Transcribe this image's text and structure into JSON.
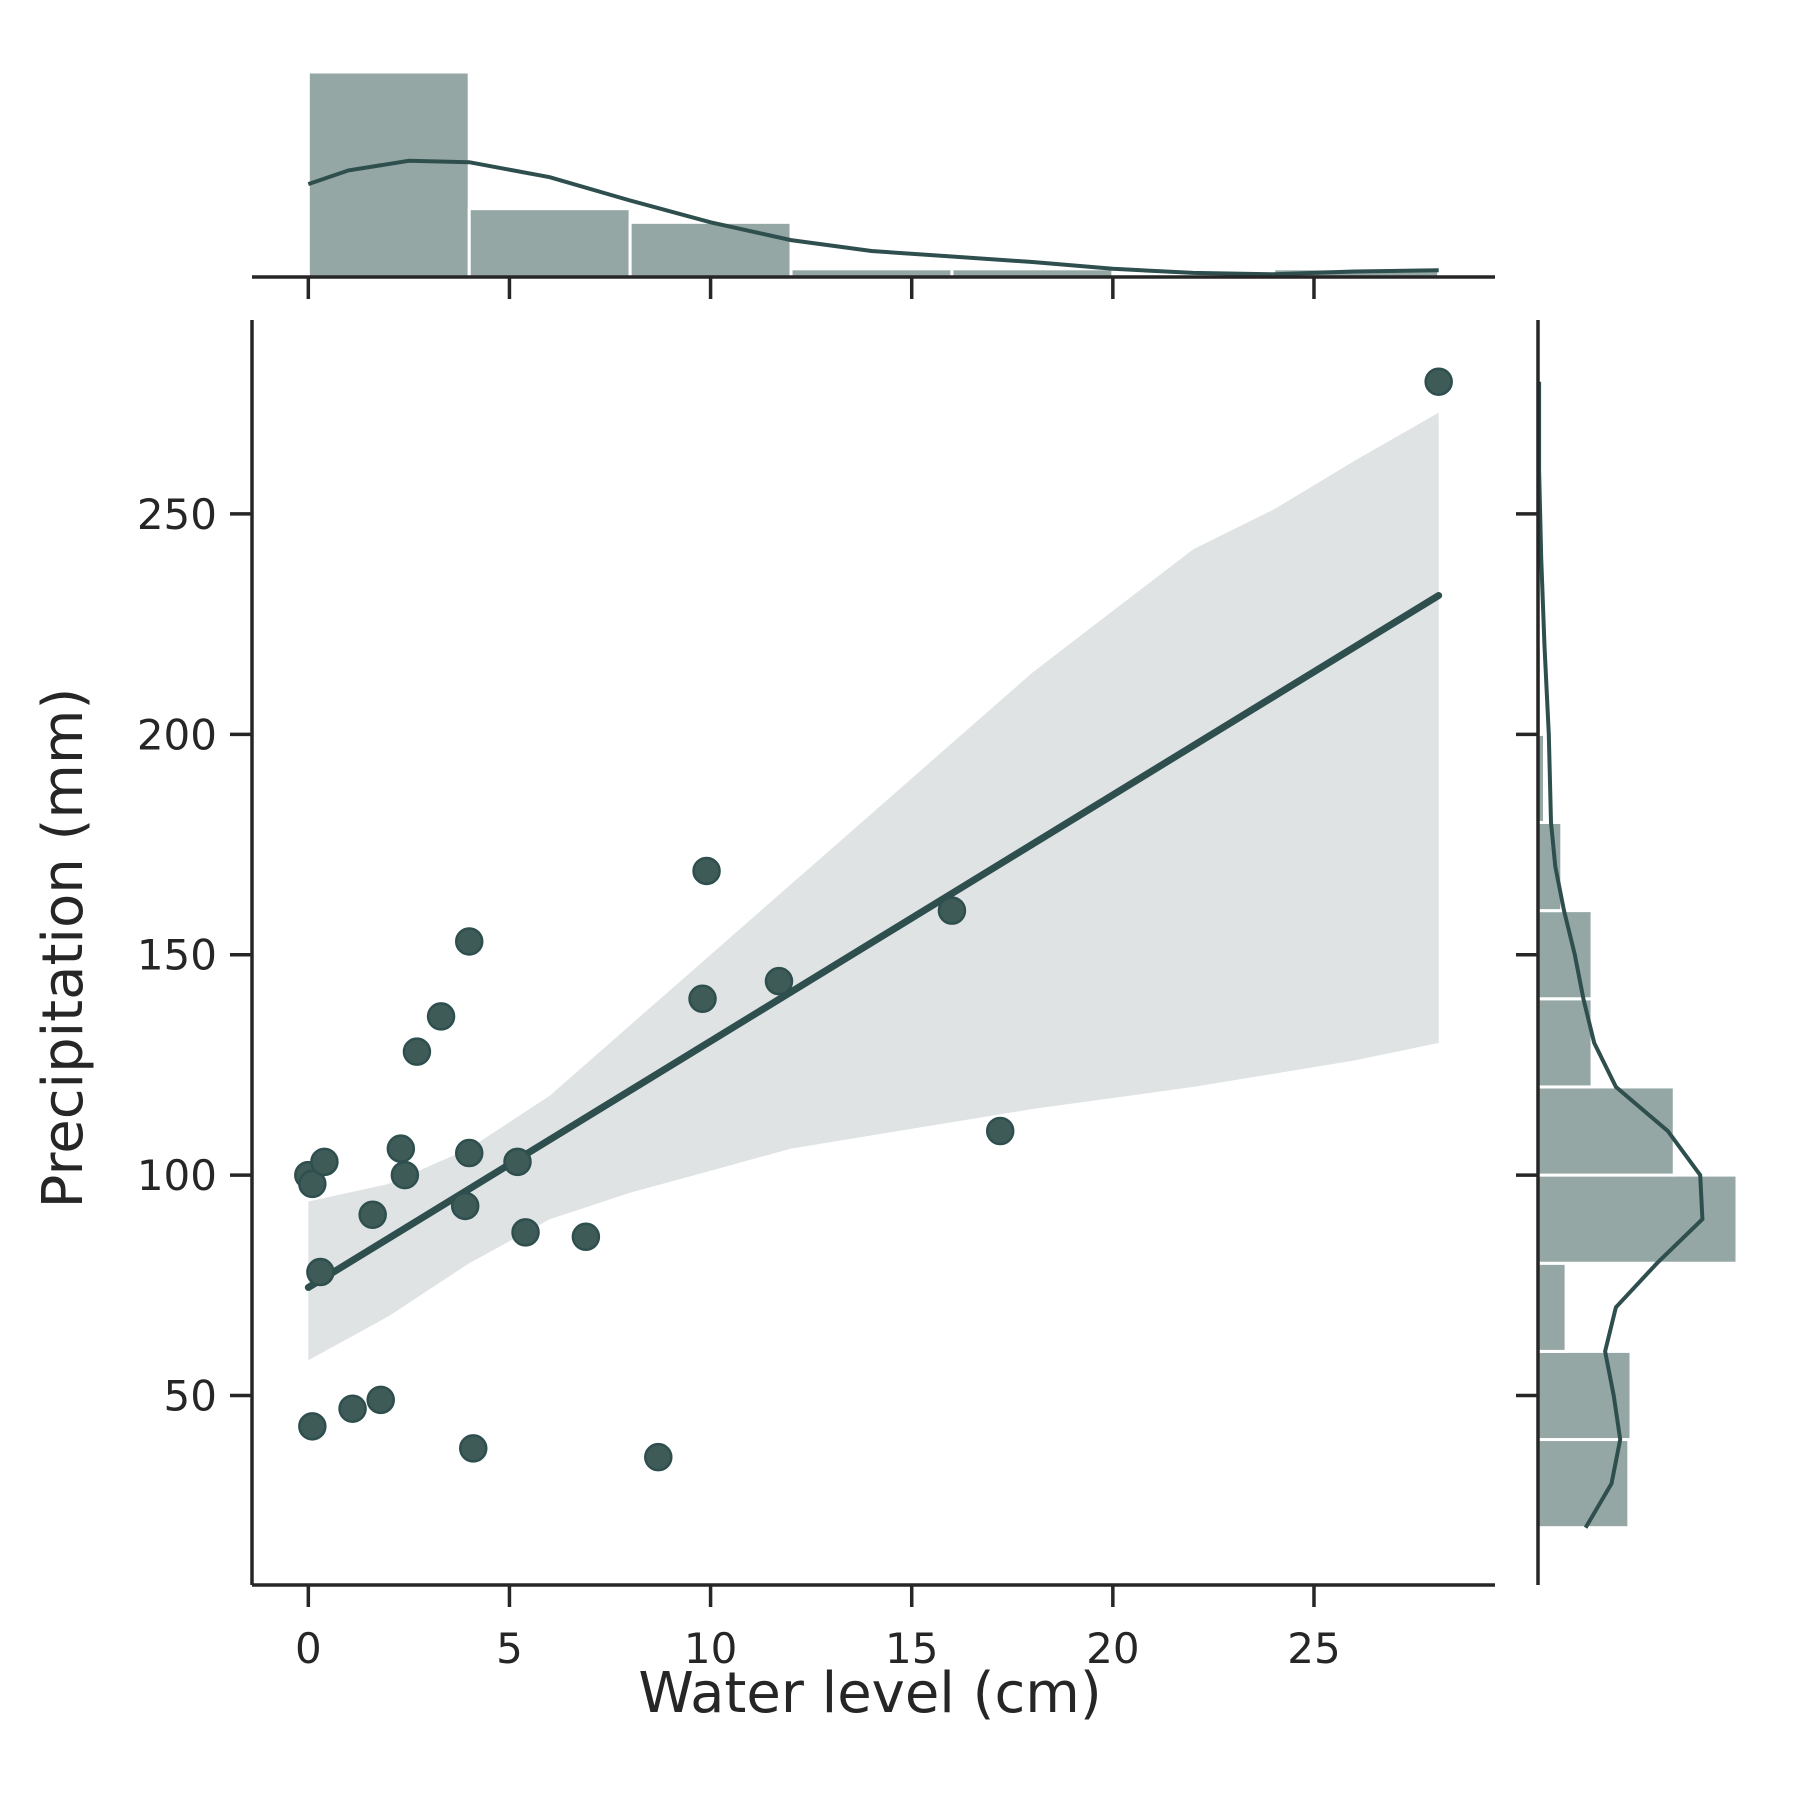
{
  "chart_data": {
    "type": "scatter",
    "xlabel": "Water level (cm)",
    "ylabel": "Precipitation (mm)",
    "xlim": [
      -1.4,
      29.5
    ],
    "ylim": [
      7,
      294
    ],
    "xticks": [
      0,
      5,
      10,
      15,
      20,
      25
    ],
    "yticks": [
      50,
      100,
      150,
      200,
      250
    ],
    "colors": {
      "points": "#3e5b58",
      "line": "#2f4f4f",
      "band": "#dfe3e4",
      "bars": "#95a7a5"
    },
    "points": [
      {
        "x": 0.0,
        "y": 100
      },
      {
        "x": 0.1,
        "y": 98
      },
      {
        "x": 0.3,
        "y": 78
      },
      {
        "x": 0.4,
        "y": 103
      },
      {
        "x": 0.1,
        "y": 43
      },
      {
        "x": 1.1,
        "y": 47
      },
      {
        "x": 1.8,
        "y": 49
      },
      {
        "x": 1.6,
        "y": 91
      },
      {
        "x": 2.3,
        "y": 106
      },
      {
        "x": 2.4,
        "y": 100
      },
      {
        "x": 2.7,
        "y": 128
      },
      {
        "x": 3.3,
        "y": 136
      },
      {
        "x": 3.9,
        "y": 93
      },
      {
        "x": 4.0,
        "y": 153
      },
      {
        "x": 4.0,
        "y": 105
      },
      {
        "x": 4.1,
        "y": 38
      },
      {
        "x": 5.2,
        "y": 103
      },
      {
        "x": 5.4,
        "y": 87
      },
      {
        "x": 6.9,
        "y": 86
      },
      {
        "x": 8.7,
        "y": 36
      },
      {
        "x": 9.8,
        "y": 140
      },
      {
        "x": 9.9,
        "y": 169
      },
      {
        "x": 11.7,
        "y": 144
      },
      {
        "x": 16.0,
        "y": 160
      },
      {
        "x": 17.2,
        "y": 110
      },
      {
        "x": 28.1,
        "y": 280
      }
    ],
    "regression": {
      "x": [
        0,
        28.1
      ],
      "y": [
        74.5,
        231.5
      ]
    },
    "confidence_band": [
      {
        "x": 0,
        "lo": 58,
        "hi": 94
      },
      {
        "x": 2,
        "lo": 68,
        "hi": 98
      },
      {
        "x": 4,
        "lo": 80,
        "hi": 106
      },
      {
        "x": 6,
        "lo": 90,
        "hi": 118
      },
      {
        "x": 8,
        "lo": 96,
        "hi": 134
      },
      {
        "x": 10,
        "lo": 101,
        "hi": 150
      },
      {
        "x": 12,
        "lo": 106,
        "hi": 166
      },
      {
        "x": 14,
        "lo": 109,
        "hi": 182
      },
      {
        "x": 16,
        "lo": 112,
        "hi": 198
      },
      {
        "x": 18,
        "lo": 115,
        "hi": 214
      },
      {
        "x": 20,
        "lo": 117.5,
        "hi": 228
      },
      {
        "x": 22,
        "lo": 120,
        "hi": 242
      },
      {
        "x": 24,
        "lo": 123,
        "hi": 251
      },
      {
        "x": 26,
        "lo": 126,
        "hi": 262
      },
      {
        "x": 28.1,
        "lo": 130,
        "hi": 273
      }
    ],
    "x_histogram": {
      "bins": [
        [
          0,
          4
        ],
        [
          4,
          8
        ],
        [
          8,
          12
        ],
        [
          12,
          16
        ],
        [
          16,
          20
        ],
        [
          20,
          24
        ],
        [
          24,
          28.1
        ]
      ],
      "counts": [
        15,
        5,
        4,
        0.6,
        0.6,
        0,
        0.6
      ]
    },
    "x_kde": [
      {
        "x": 0,
        "d": 6.8
      },
      {
        "x": 1,
        "d": 7.8
      },
      {
        "x": 2.5,
        "d": 8.5
      },
      {
        "x": 4,
        "d": 8.4
      },
      {
        "x": 6,
        "d": 7.3
      },
      {
        "x": 8,
        "d": 5.6
      },
      {
        "x": 10,
        "d": 4.0
      },
      {
        "x": 12,
        "d": 2.7
      },
      {
        "x": 14,
        "d": 1.9
      },
      {
        "x": 16,
        "d": 1.5
      },
      {
        "x": 18,
        "d": 1.1
      },
      {
        "x": 20,
        "d": 0.6
      },
      {
        "x": 22,
        "d": 0.3
      },
      {
        "x": 24,
        "d": 0.2
      },
      {
        "x": 26,
        "d": 0.4
      },
      {
        "x": 28.1,
        "d": 0.5
      }
    ],
    "y_histogram": {
      "bins": [
        [
          20,
          40
        ],
        [
          40,
          60
        ],
        [
          60,
          80
        ],
        [
          80,
          100
        ],
        [
          100,
          120
        ],
        [
          120,
          140
        ],
        [
          140,
          160
        ],
        [
          160,
          180
        ],
        [
          180,
          200
        ],
        [
          200,
          220
        ],
        [
          220,
          240
        ],
        [
          240,
          260
        ],
        [
          260,
          280
        ]
      ],
      "counts": [
        4.2,
        4.3,
        1.3,
        9.2,
        6.3,
        2.5,
        2.5,
        1.1,
        0.3,
        0.15,
        0,
        0,
        0
      ]
    },
    "y_kde": [
      {
        "y": 20,
        "d": 2.2
      },
      {
        "y": 30,
        "d": 3.4
      },
      {
        "y": 40,
        "d": 3.8
      },
      {
        "y": 50,
        "d": 3.5
      },
      {
        "y": 60,
        "d": 3.1
      },
      {
        "y": 70,
        "d": 3.6
      },
      {
        "y": 80,
        "d": 5.5
      },
      {
        "y": 90,
        "d": 7.6
      },
      {
        "y": 100,
        "d": 7.5
      },
      {
        "y": 110,
        "d": 6.0
      },
      {
        "y": 120,
        "d": 3.6
      },
      {
        "y": 130,
        "d": 2.6
      },
      {
        "y": 140,
        "d": 2.1
      },
      {
        "y": 150,
        "d": 1.7
      },
      {
        "y": 160,
        "d": 1.2
      },
      {
        "y": 170,
        "d": 0.8
      },
      {
        "y": 180,
        "d": 0.6
      },
      {
        "y": 200,
        "d": 0.5
      },
      {
        "y": 220,
        "d": 0.3
      },
      {
        "y": 240,
        "d": 0.15
      },
      {
        "y": 260,
        "d": 0.05
      },
      {
        "y": 280,
        "d": 0.05
      }
    ]
  }
}
